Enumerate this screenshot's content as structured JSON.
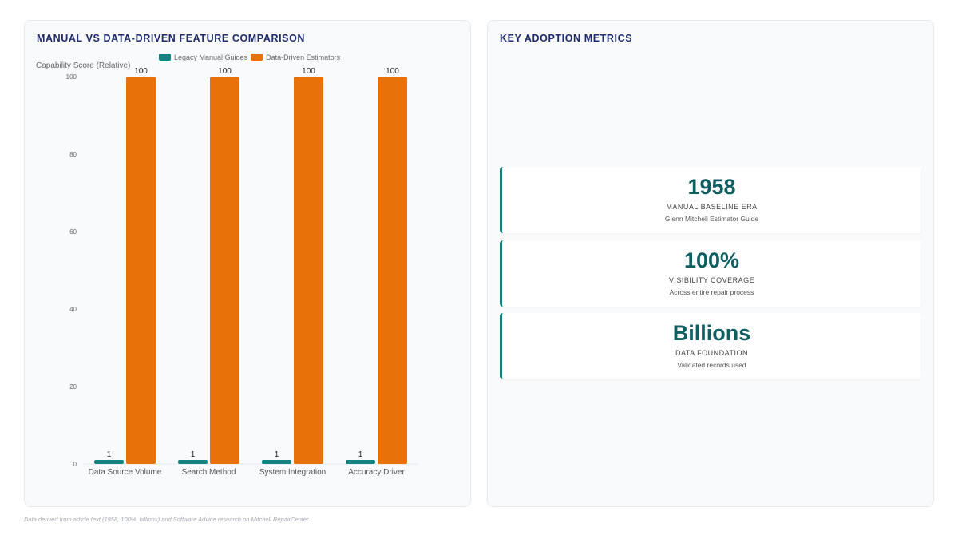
{
  "left_panel": {
    "title": "MANUAL VS DATA-DRIVEN FEATURE COMPARISON"
  },
  "right_panel": {
    "title": "KEY ADOPTION METRICS"
  },
  "chart_data": {
    "type": "bar",
    "ylabel": "Capability Score (Relative)",
    "categories": [
      "Data Source Volume",
      "Search Method",
      "System Integration",
      "Accuracy Driver"
    ],
    "series": [
      {
        "name": "Legacy Manual Guides",
        "color": "#138482",
        "values": [
          1,
          1,
          1,
          1
        ]
      },
      {
        "name": "Data-Driven Estimators",
        "color": "#e8710a",
        "values": [
          100,
          100,
          100,
          100
        ]
      }
    ],
    "ylim": [
      0,
      100
    ],
    "yticks": [
      0,
      20,
      40,
      60,
      80,
      100
    ],
    "data_labels": true,
    "legend": "top",
    "grid": false
  },
  "metrics": [
    {
      "value": "1958",
      "label": "MANUAL BASELINE ERA",
      "sub": "Glenn Mitchell Estimator Guide"
    },
    {
      "value": "100%",
      "label": "VISIBILITY COVERAGE",
      "sub": "Across entire repair process"
    },
    {
      "value": "Billions",
      "label": "DATA FOUNDATION",
      "sub": "Validated records used"
    }
  ],
  "footnote": "Data derived from article text (1958, 100%, billions) and Software Advice research on Mitchell RepairCenter.",
  "colors": {
    "accent": "#1a7f7a",
    "title": "#1f2a6b",
    "metric_value": "#0f5f61"
  }
}
